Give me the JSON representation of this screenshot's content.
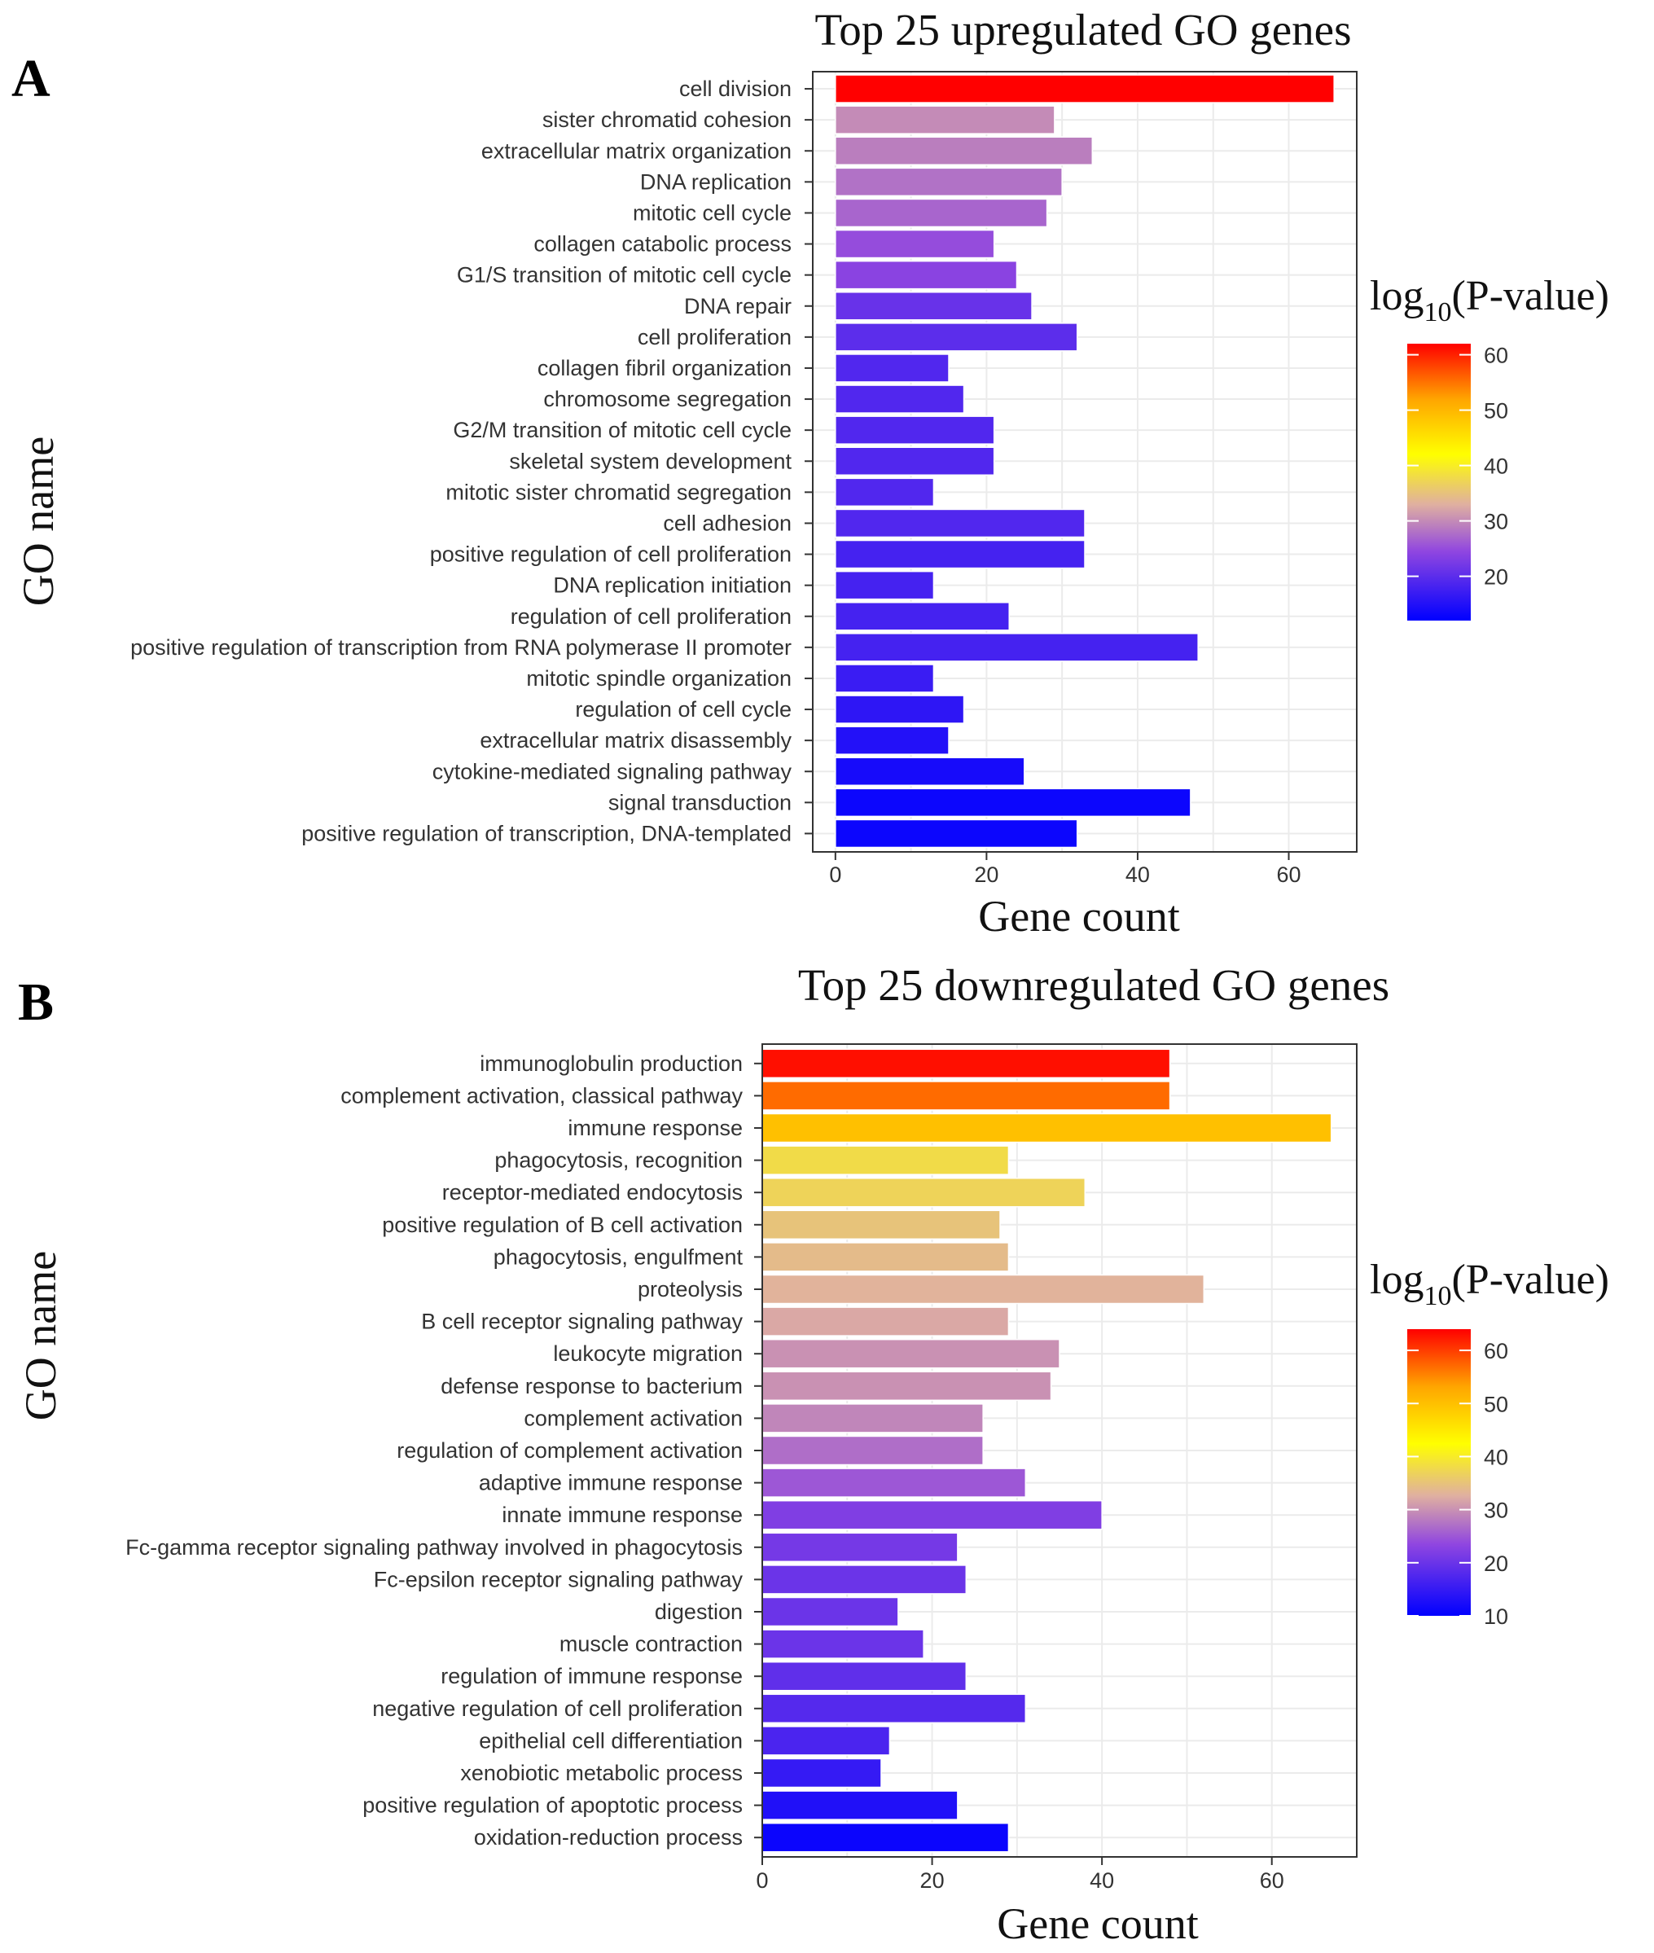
{
  "chart_data": [
    {
      "type": "bar",
      "orientation": "horizontal",
      "panel_letter": "A",
      "title": "Top 25 upregulated GO genes",
      "xlabel": "Gene count",
      "ylabel": "GO name",
      "xlim": [
        -3,
        69
      ],
      "xticks": [
        0,
        20,
        40,
        60
      ],
      "legend": {
        "title_main": "log",
        "title_sub": "10",
        "title_rest": "(P-value)",
        "range": [
          12,
          62
        ],
        "ticks": [
          20,
          30,
          40,
          50,
          60
        ],
        "placement": "right"
      },
      "categories": [
        "cell division",
        "sister chromatid cohesion",
        "extracellular matrix organization",
        "DNA replication",
        "mitotic cell cycle",
        "collagen catabolic process",
        "G1/S transition of mitotic cell cycle",
        "DNA repair",
        "cell proliferation",
        "collagen fibril organization",
        "chromosome segregation",
        "G2/M transition of mitotic cell cycle",
        "skeletal system development",
        "mitotic sister chromatid segregation",
        "cell adhesion",
        "positive regulation of cell proliferation",
        "DNA replication initiation",
        "regulation of cell proliferation",
        "positive regulation of transcription from RNA polymerase II promoter",
        "mitotic spindle organization",
        "regulation of cell cycle",
        "extracellular matrix disassembly",
        "cytokine-mediated signaling pathway",
        "signal transduction",
        "positive regulation of transcription, DNA-templated"
      ],
      "values": [
        66,
        29,
        34,
        30,
        28,
        21,
        24,
        26,
        32,
        15,
        17,
        21,
        21,
        13,
        33,
        33,
        13,
        23,
        48,
        13,
        17,
        15,
        25,
        47,
        32
      ],
      "color_values": [
        62,
        30,
        29,
        28,
        27,
        25,
        24,
        21,
        20,
        19,
        19,
        19,
        19,
        19,
        19,
        18,
        18,
        18,
        18,
        17,
        16,
        15,
        14,
        13,
        13
      ]
    },
    {
      "type": "bar",
      "orientation": "horizontal",
      "panel_letter": "B",
      "title": "Top 25 downregulated GO genes",
      "xlabel": "Gene count",
      "ylabel": "GO name",
      "xlim": [
        0,
        70
      ],
      "xticks": [
        0,
        20,
        40,
        60
      ],
      "legend": {
        "title_main": "log",
        "title_sub": "10",
        "title_rest": "(P-value)",
        "range": [
          10,
          64
        ],
        "ticks": [
          10,
          20,
          30,
          40,
          50,
          60
        ],
        "placement": "right"
      },
      "categories": [
        "immunoglobulin production",
        "complement activation, classical pathway",
        "immune response",
        "phagocytosis, recognition",
        "receptor-mediated endocytosis",
        "positive regulation of B cell activation",
        "phagocytosis, engulfment",
        "proteolysis",
        "B cell receptor signaling pathway",
        "leukocyte migration",
        "defense response to bacterium",
        "complement activation",
        "regulation of complement activation",
        "adaptive immune response",
        "innate immune response",
        "Fc-gamma receptor signaling pathway involved in phagocytosis",
        "Fc-epsilon receptor signaling pathway",
        "digestion",
        "muscle contraction",
        "regulation of immune response",
        "negative regulation of cell proliferation",
        "epithelial cell differentiation",
        "xenobiotic metabolic process",
        "positive regulation of apoptotic process",
        "oxidation-reduction process"
      ],
      "values": [
        48,
        48,
        67,
        29,
        38,
        28,
        29,
        52,
        29,
        35,
        34,
        26,
        26,
        31,
        40,
        23,
        24,
        16,
        19,
        24,
        31,
        15,
        14,
        23,
        29
      ],
      "color_values": [
        63,
        57,
        50,
        38,
        37,
        35,
        34,
        33,
        32,
        30,
        30,
        29,
        27,
        25,
        22,
        21,
        20,
        20,
        20,
        19,
        18,
        17,
        15,
        13,
        11
      ]
    }
  ]
}
